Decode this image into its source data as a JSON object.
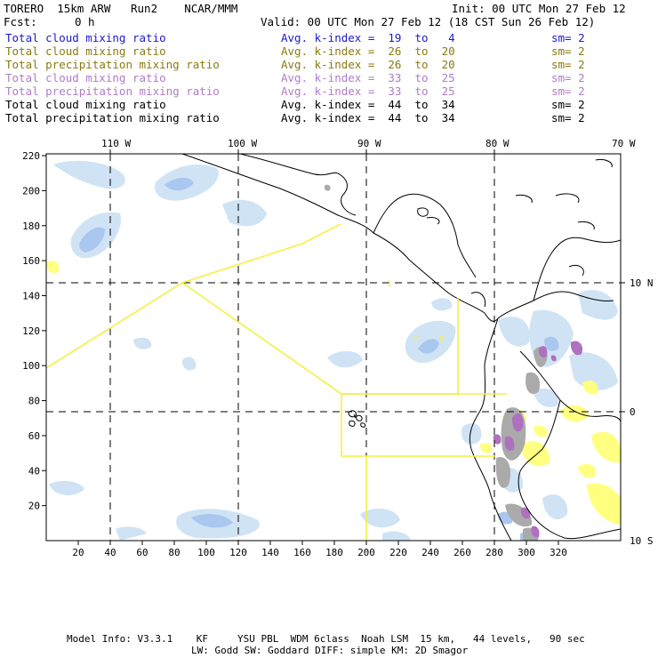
{
  "header": {
    "model_title": "TORERO  15km ARW   Run2    NCAR/MMM",
    "init": "Init: 00 UTC Mon 27 Feb 12",
    "fcst_label": "Fcst:",
    "fcst_value": "0 h",
    "valid": "Valid: 00 UTC Mon 27 Feb 12 (18 CST Sun 26 Feb 12)"
  },
  "fields": [
    {
      "name": "Total cloud mixing ratio",
      "kindex": "Avg. k-index =  19  to   4",
      "sm": "sm= 2",
      "color": "#1a1acc"
    },
    {
      "name": "Total cloud mixing ratio",
      "kindex": "Avg. k-index =  26  to  20",
      "sm": "sm= 2",
      "color": "#8a7a10"
    },
    {
      "name": "Total precipitation mixing ratio",
      "kindex": "Avg. k-index =  26  to  20",
      "sm": "sm= 2",
      "color": "#8a7a10"
    },
    {
      "name": "Total cloud mixing ratio",
      "kindex": "Avg. k-index =  33  to  25",
      "sm": "sm= 2",
      "color": "#b07cc8"
    },
    {
      "name": "Total precipitation mixing ratio",
      "kindex": "Avg. k-index =  33  to  25",
      "sm": "sm= 2",
      "color": "#b07cc8"
    },
    {
      "name": "Total cloud mixing ratio",
      "kindex": "Avg. k-index =  44  to  34",
      "sm": "sm= 2",
      "color": "#000000"
    },
    {
      "name": "Total precipitation mixing ratio",
      "kindex": "Avg. k-index =  44  to  34",
      "sm": "sm= 2",
      "color": "#000000"
    }
  ],
  "axes": {
    "lon_labels": [
      "110 W",
      "100 W",
      "90 W",
      "80 W",
      "70 W"
    ],
    "lat_labels": [
      "10 N",
      "0",
      "10 S"
    ],
    "x_ticks": [
      "20",
      "40",
      "60",
      "80",
      "100",
      "120",
      "140",
      "160",
      "180",
      "200",
      "220",
      "240",
      "260",
      "280",
      "300",
      "320"
    ],
    "y_ticks": [
      "220",
      "200",
      "180",
      "160",
      "140",
      "120",
      "100",
      "80",
      "60",
      "40",
      "20"
    ]
  },
  "footer": {
    "line1": "Model Info: V3.3.1    KF     YSU PBL  WDM 6class  Noah LSM  15 km,   44 levels,   90 sec",
    "line2": "LW: Godd SW: Goddard DIFF: simple KM: 2D Smagor"
  },
  "colors": {
    "light_blue": "#cfe3f5",
    "mid_blue": "#a9c7ef",
    "yellow": "#ffff80",
    "gray": "#aaaaaa",
    "purple": "#b070c0",
    "yellow_line": "#f5f040"
  }
}
